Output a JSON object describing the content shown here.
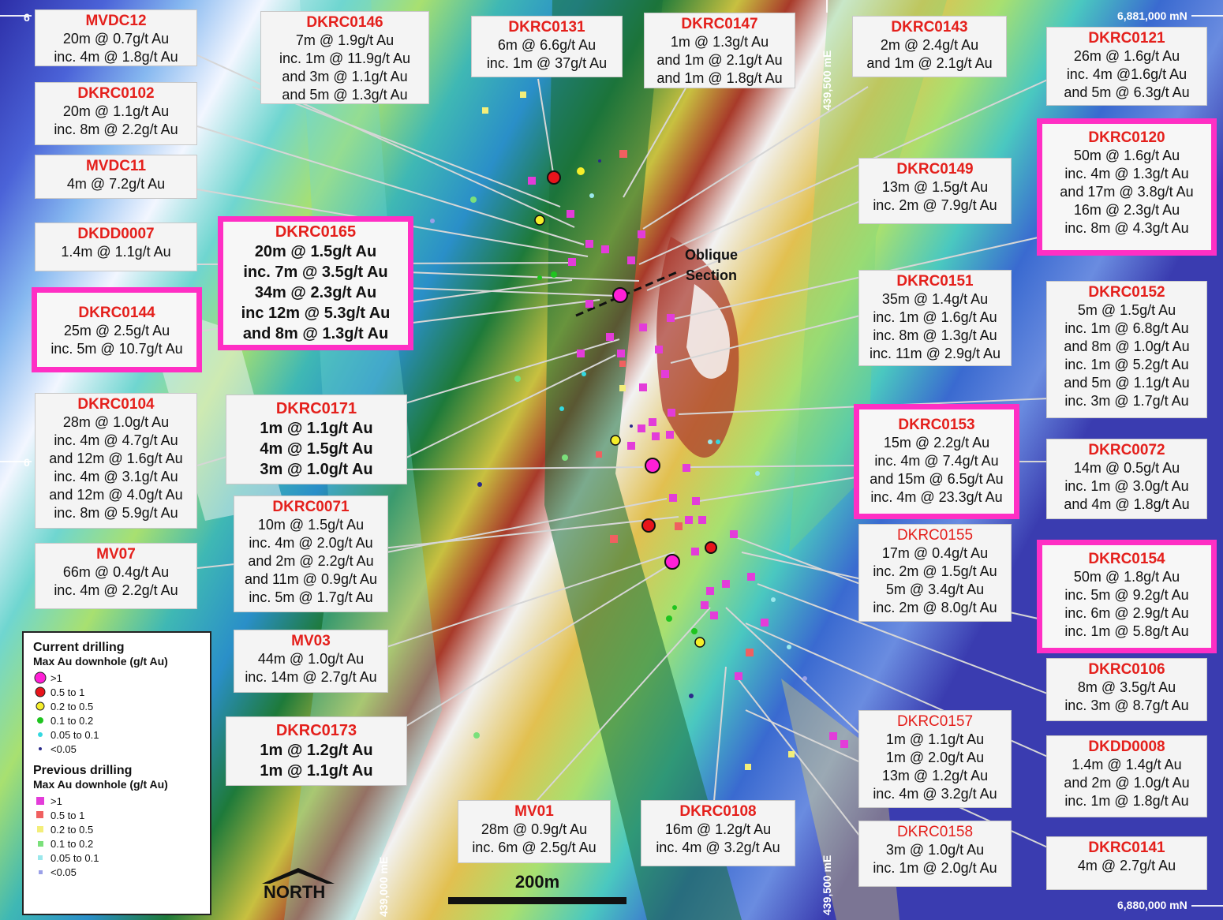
{
  "grid_labels": {
    "top_north": "6,881,000 mN",
    "bottom_north": "6,880,000 mN",
    "east_439500_top": "439,500 mE",
    "east_439500_bottom": "439,500 mE",
    "east_439000": "439,000 mE",
    "left_tick_top": "6",
    "left_tick_mid": "6"
  },
  "labels": {
    "mvdc12": {
      "title": "MVDC12",
      "lines": [
        "20m @ 0.7g/t Au",
        "inc. 4m @ 1.8g/t Au"
      ]
    },
    "dkrc0146": {
      "title": "DKRC0146",
      "lines": [
        "7m @ 1.9g/t Au",
        "inc. 1m @ 11.9g/t Au",
        "and 3m @ 1.1g/t Au",
        "and 5m @ 1.3g/t Au"
      ]
    },
    "dkrc0131": {
      "title": "DKRC0131",
      "lines": [
        "6m @ 6.6g/t Au",
        "inc. 1m @ 37g/t Au"
      ]
    },
    "dkrc0147": {
      "title": "DKRC0147",
      "lines": [
        "1m @ 1.3g/t Au",
        "and 1m @ 2.1g/t Au",
        "and 1m @ 1.8g/t Au"
      ]
    },
    "dkrc0143": {
      "title": "DKRC0143",
      "lines": [
        "2m @ 2.4g/t Au",
        "and 1m @ 2.1g/t Au"
      ]
    },
    "dkrc0121": {
      "title": "DKRC0121",
      "lines": [
        "26m @ 1.6g/t Au",
        "inc. 4m @1.6g/t Au",
        "and 5m @ 6.3g/t Au"
      ]
    },
    "dkrc0102": {
      "title": "DKRC0102",
      "lines": [
        "20m @ 1.1g/t Au",
        "inc. 8m @ 2.2g/t Au"
      ]
    },
    "mvdc11": {
      "title": "MVDC11",
      "lines": [
        "4m @ 7.2g/t Au"
      ]
    },
    "dkdd0007": {
      "title": "DKDD0007",
      "lines": [
        "1.4m @ 1.1g/t Au"
      ]
    },
    "dkrc0165": {
      "title": "DKRC0165",
      "lines": [
        "20m @ 1.5g/t Au",
        "inc. 7m @ 3.5g/t Au",
        "34m @ 2.3g/t Au",
        "inc 12m @ 5.3g/t Au",
        "and 8m @ 1.3g/t Au"
      ]
    },
    "dkrc0144": {
      "title": "DKRC0144",
      "lines": [
        "25m @ 2.5g/t Au",
        "inc. 5m @ 10.7g/t Au"
      ]
    },
    "dkrc0120": {
      "title": "DKRC0120",
      "lines": [
        "50m @ 1.6g/t Au",
        "inc. 4m @ 1.3g/t Au",
        "and 17m @ 3.8g/t Au",
        "16m @ 2.3g/t Au",
        "inc. 8m @ 4.3g/t Au"
      ]
    },
    "dkrc0149": {
      "title": "DKRC0149",
      "lines": [
        "13m @ 1.5g/t Au",
        "inc. 2m @ 7.9g/t Au"
      ]
    },
    "dkrc0151": {
      "title": "DKRC0151",
      "lines": [
        "35m @ 1.4g/t Au",
        "inc. 1m @ 1.6g/t Au",
        "inc. 8m @ 1.3g/t Au",
        "inc. 11m @ 2.9g/t Au"
      ]
    },
    "dkrc0152": {
      "title": "DKRC0152",
      "lines": [
        "5m @ 1.5g/t Au",
        "inc. 1m @ 6.8g/t Au",
        "and 8m @ 1.0g/t Au",
        "inc. 1m @ 5.2g/t Au",
        "and 5m @ 1.1g/t Au",
        "inc. 3m @ 1.7g/t Au"
      ]
    },
    "dkrc0104": {
      "title": "DKRC0104",
      "lines": [
        "28m @ 1.0g/t Au",
        "inc. 4m @ 4.7g/t Au",
        "and 12m @ 1.6g/t Au",
        "inc. 4m @ 3.1g/t Au",
        "and 12m @ 4.0g/t Au",
        "inc. 8m @ 5.9g/t Au"
      ]
    },
    "dkrc0171": {
      "title": "DKRC0171",
      "lines": [
        "1m @ 1.1g/t Au",
        "4m @ 1.5g/t Au",
        "3m @ 1.0g/t Au"
      ]
    },
    "dkrc0153": {
      "title": "DKRC0153",
      "lines": [
        "15m @ 2.2g/t Au",
        "inc. 4m @ 7.4g/t Au",
        "and 15m @ 6.5g/t Au",
        "inc. 4m @ 23.3g/t Au"
      ]
    },
    "dkrc0072": {
      "title": "DKRC0072",
      "lines": [
        "14m @ 0.5g/t Au",
        "inc. 1m @ 3.0g/t Au",
        "and 4m @ 1.8g/t Au"
      ]
    },
    "dkrc0071": {
      "title": "DKRC0071",
      "lines": [
        "10m @ 1.5g/t Au",
        "inc. 4m @ 2.0g/t Au",
        "and 2m @ 2.2g/t Au",
        "and 11m @ 0.9g/t Au",
        "inc. 5m @ 1.7g/t Au"
      ]
    },
    "mv07": {
      "title": "MV07",
      "lines": [
        "66m @ 0.4g/t Au",
        "inc. 4m @ 2.2g/t Au"
      ]
    },
    "dkrc0155": {
      "title": "DKRC0155",
      "lines": [
        "17m @ 0.4g/t Au",
        "inc. 2m @ 1.5g/t Au",
        "5m @ 3.4g/t Au",
        "inc. 2m @ 8.0g/t Au"
      ]
    },
    "dkrc0154": {
      "title": "DKRC0154",
      "lines": [
        "50m @ 1.8g/t Au",
        "inc. 5m @ 9.2g/t Au",
        "inc. 6m @ 2.9g/t Au",
        "inc. 1m @ 5.8g/t Au"
      ]
    },
    "mv03": {
      "title": "MV03",
      "lines": [
        "44m @ 1.0g/t Au",
        "inc. 14m @ 2.7g/t Au"
      ]
    },
    "dkrc0106": {
      "title": "DKRC0106",
      "lines": [
        "8m @ 3.5g/t Au",
        "inc. 3m @ 8.7g/t Au"
      ]
    },
    "dkrc0173": {
      "title": "DKRC0173",
      "lines": [
        "1m @ 1.2g/t Au",
        "1m @ 1.1g/t Au"
      ]
    },
    "dkrc0157": {
      "title": "DKRC0157",
      "lines": [
        "1m @ 1.1g/t Au",
        "1m @ 2.0g/t Au",
        "13m @ 1.2g/t Au",
        "inc. 4m @ 3.2g/t Au"
      ]
    },
    "dkdd0008": {
      "title": "DKDD0008",
      "lines": [
        "1.4m @ 1.4g/t Au",
        "and 2m @ 1.0g/t Au",
        "inc. 1m @ 1.8g/t Au"
      ]
    },
    "mv01": {
      "title": "MV01",
      "lines": [
        "28m @ 0.9g/t Au",
        "inc. 6m @ 2.5g/t Au"
      ]
    },
    "dkrc0108": {
      "title": "DKRC0108",
      "lines": [
        "16m @ 1.2g/t Au",
        "inc. 4m @ 3.2g/t Au"
      ]
    },
    "dkrc0158": {
      "title": "DKRC0158",
      "lines": [
        "3m @ 1.0g/t Au",
        "inc. 1m @ 2.0g/t Au"
      ]
    },
    "dkrc0141": {
      "title": "DKRC0141",
      "lines": [
        "4m @ 2.7g/t Au"
      ]
    }
  },
  "oblique_section": {
    "line1": "Oblique",
    "line2": "Section"
  },
  "legend": {
    "current_title": "Current drilling",
    "current_subtitle": "Max Au downhole (g/t Au)",
    "current_items": [
      {
        "label": ">1",
        "color": "#ff1fd6"
      },
      {
        "label": "0.5   to  1",
        "color": "#e8141b"
      },
      {
        "label": "0.2   to  0.5",
        "color": "#f5ee2a"
      },
      {
        "label": "0.1   to  0.2",
        "color": "#1fc41f"
      },
      {
        "label": "0.05  to  0.1",
        "color": "#34d8e0"
      },
      {
        "label": "<0.05",
        "color": "#2a2a8a"
      }
    ],
    "previous_title": "Previous drilling",
    "previous_subtitle": "Max Au downhole (g/t Au)",
    "previous_items": [
      {
        "label": ">1",
        "color": "#e33cd9"
      },
      {
        "label": "0.5   to  1",
        "color": "#f06060"
      },
      {
        "label": "0.2   to  0.5",
        "color": "#f3ee7a"
      },
      {
        "label": "0.1   to  0.2",
        "color": "#7be07b"
      },
      {
        "label": "0.05  to  0.1",
        "color": "#9be8ec"
      },
      {
        "label": "<0.05",
        "color": "#9aa0e8"
      }
    ]
  },
  "north_label": "NORTH",
  "scale_label": "200m",
  "colors": {
    "highlight": "#ff2fc4",
    "title_red": "#e4201c",
    "leader": "#d0d0d0"
  }
}
